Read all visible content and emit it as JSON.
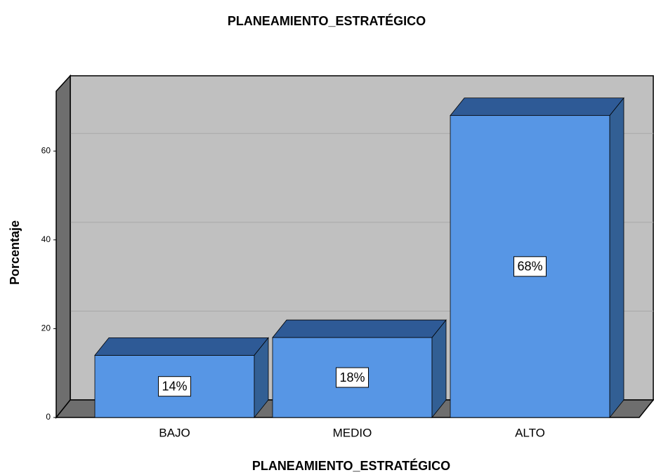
{
  "chart_data": {
    "type": "bar3d",
    "title": "PLANEAMIENTO_ESTRATÉGICO",
    "x_label": "PLANEAMIENTO_ESTRATÉGICO",
    "y_label": "Porcentaje",
    "categories": [
      "BAJO",
      "MEDIO",
      "ALTO"
    ],
    "values": [
      14,
      18,
      68
    ],
    "value_labels": [
      "14%",
      "18%",
      "68%"
    ],
    "color": "#5796e5",
    "ylim": [
      0,
      73
    ],
    "yticks": [
      0,
      20,
      40,
      60
    ],
    "grid": true
  }
}
